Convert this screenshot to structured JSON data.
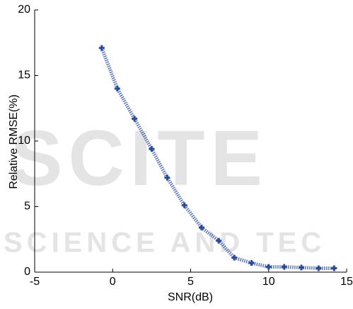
{
  "chart_data": {
    "type": "line",
    "xlabel": "SNR(dB)",
    "ylabel": "Relative RMSE(%)",
    "watermark": [
      "SCITE",
      "SCIENCE AND TEC"
    ],
    "x": [
      -0.7,
      0.3,
      1.4,
      2.5,
      3.5,
      4.6,
      5.7,
      6.8,
      7.8,
      8.9,
      10,
      11,
      12.1,
      13.2,
      14.2
    ],
    "series": [
      {
        "color": "#2a4a9c",
        "values": [
          17.1,
          14,
          11.7,
          9.4,
          7.2,
          5.1,
          3.4,
          2.4,
          1.1,
          0.7,
          0.4,
          0.4,
          0.35,
          0.3,
          0.3
        ]
      }
    ],
    "xlim": [
      -5,
      15
    ],
    "xticks": [
      -5,
      0,
      5,
      10,
      15
    ],
    "ylim": [
      0,
      20
    ],
    "yticks": [
      0,
      5,
      10,
      15,
      20
    ],
    "grid": false
  }
}
